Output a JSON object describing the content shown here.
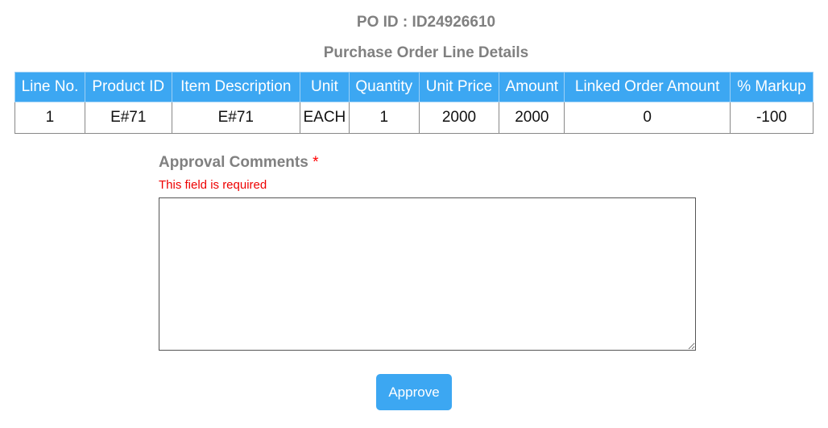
{
  "po_id": "PO ID : ID24926610",
  "subtitle": "Purchase Order Line Details",
  "table": {
    "headers": [
      "Line No.",
      "Product ID",
      "Item Description",
      "Unit",
      "Quantity",
      "Unit Price",
      "Amount",
      "Linked Order Amount",
      "% Markup"
    ],
    "rows": [
      [
        "1",
        "E#71",
        "E#71",
        "EACH",
        "1",
        "2000",
        "2000",
        "0",
        "-100"
      ]
    ]
  },
  "form": {
    "label": "Approval Comments",
    "required_mark": "*",
    "error": "This field is required",
    "value": ""
  },
  "approve_label": "Approve"
}
